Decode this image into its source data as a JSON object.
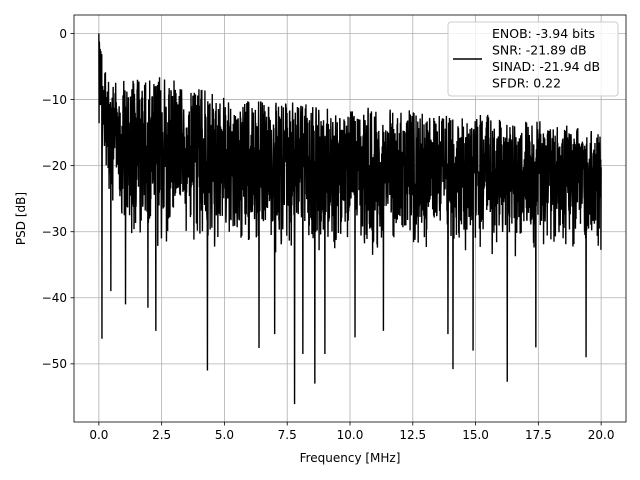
{
  "chart_data": {
    "type": "line",
    "title": "",
    "xlabel": "Frequency [MHz]",
    "ylabel": "PSD [dB]",
    "xlim": [
      -0.99,
      20.99
    ],
    "ylim": [
      -58.8,
      2.8
    ],
    "xticks": [
      0.0,
      2.5,
      5.0,
      7.5,
      10.0,
      12.5,
      15.0,
      17.5,
      20.0
    ],
    "xtick_labels": [
      "0.0",
      "2.5",
      "5.0",
      "7.5",
      "10.0",
      "12.5",
      "15.0",
      "17.5",
      "20.0"
    ],
    "yticks": [
      0,
      -10,
      -20,
      -30,
      -40,
      -50
    ],
    "ytick_labels": [
      "0",
      "−10",
      "−20",
      "−30",
      "−40",
      "−50"
    ],
    "grid": true,
    "legend_position": "top-right",
    "series": [
      {
        "name": "ENOB: -3.94 bits\nSNR: -21.89 dB\nSINAD: -21.94 dB\nSFDR: 0.22",
        "color": "#000000",
        "description": "noise-like power spectral density",
        "x_range": [
          0.0,
          20.0
        ],
        "max_db": 0.0,
        "upper_envelope_db": [
          [
            0.0,
            0.0
          ],
          [
            0.3,
            -6.0
          ],
          [
            1.0,
            -7.0
          ],
          [
            2.2,
            -6.0
          ],
          [
            5.0,
            -9.5
          ],
          [
            10.0,
            -11.0
          ],
          [
            15.0,
            -12.0
          ],
          [
            20.0,
            -14.5
          ]
        ],
        "lower_envelope_db": [
          [
            0.0,
            -16.0
          ],
          [
            0.5,
            -30.0
          ],
          [
            2.0,
            -33.0
          ],
          [
            10.0,
            -34.5
          ],
          [
            20.0,
            -34.0
          ]
        ],
        "deep_nulls": [
          [
            0.12,
            -46.2
          ],
          [
            0.48,
            -39.0
          ],
          [
            1.06,
            -41.0
          ],
          [
            1.95,
            -41.5
          ],
          [
            2.27,
            -45.0
          ],
          [
            4.32,
            -51.0
          ],
          [
            6.38,
            -47.6
          ],
          [
            7.0,
            -45.5
          ],
          [
            7.79,
            -56.1
          ],
          [
            8.12,
            -48.5
          ],
          [
            8.6,
            -53.0
          ],
          [
            9.0,
            -48.5
          ],
          [
            10.2,
            -46.0
          ],
          [
            11.33,
            -45.0
          ],
          [
            13.9,
            -45.5
          ],
          [
            14.1,
            -50.8
          ],
          [
            14.9,
            -48.0
          ],
          [
            16.26,
            -52.7
          ],
          [
            17.4,
            -47.5
          ],
          [
            19.4,
            -49.0
          ]
        ]
      }
    ]
  }
}
